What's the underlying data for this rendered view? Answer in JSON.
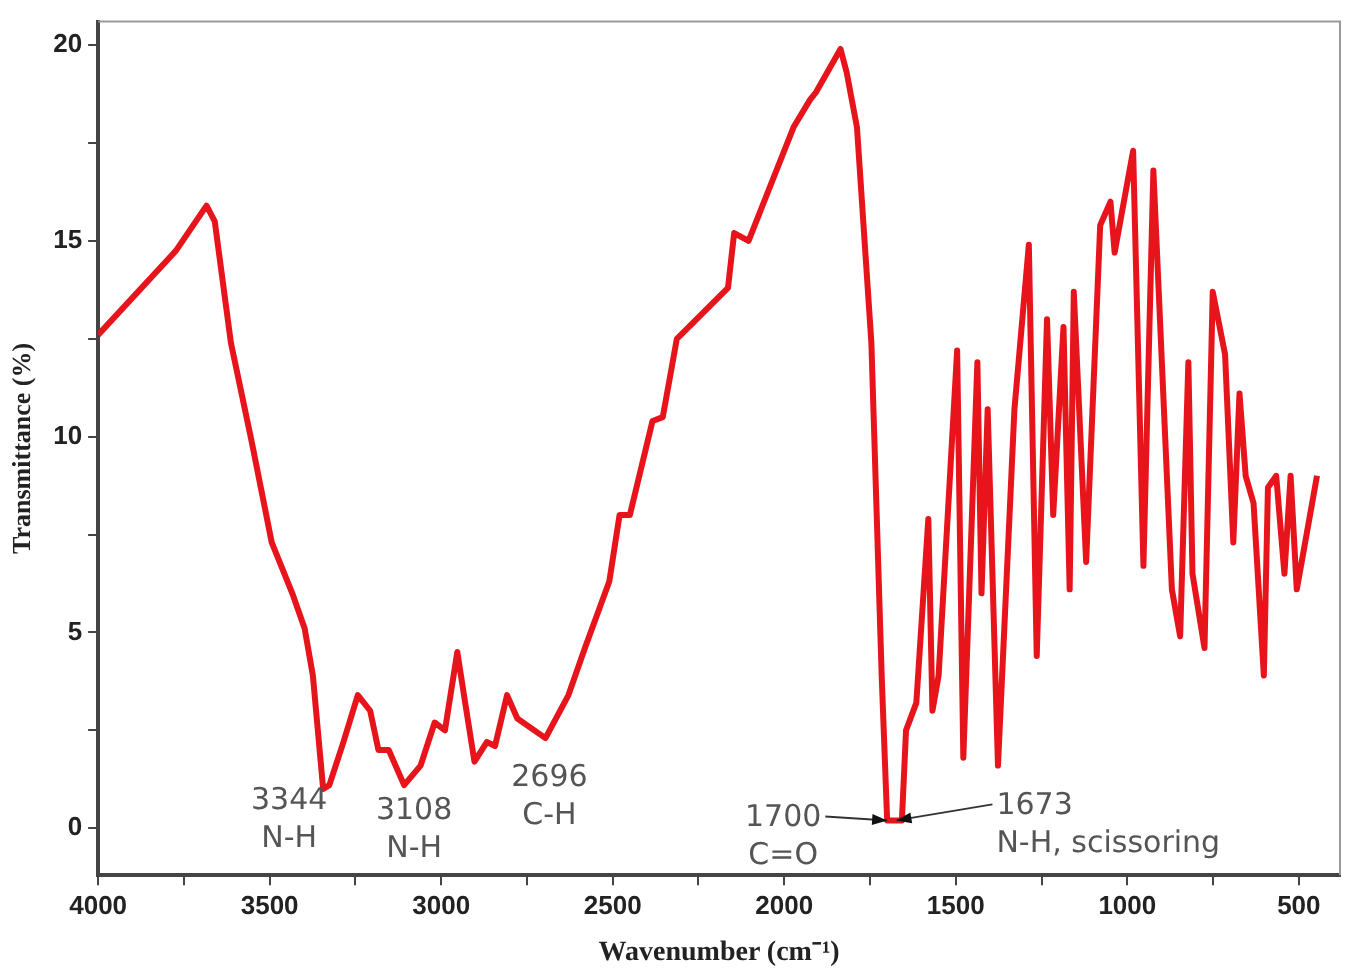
{
  "chart_data": {
    "type": "line",
    "xlabel": "Wavenumber (cm⁻¹)",
    "ylabel": "Transmittance (%)",
    "xlim": [
      4000,
      380
    ],
    "ylim": [
      -1.2,
      20.6
    ],
    "xticks": [
      4000,
      {
        "value": 3750,
        "label": null
      },
      3500,
      {
        "value": 3250,
        "label": null
      },
      3000,
      {
        "value": 2750,
        "label": null
      },
      2500,
      {
        "value": 2250,
        "label": null
      },
      2000,
      {
        "value": 1750,
        "label": null
      },
      1500,
      {
        "value": 1250,
        "label": null
      },
      1000,
      {
        "value": 750,
        "label": null
      },
      500
    ],
    "yticks": [
      0,
      {
        "value": 2.5,
        "label": null
      },
      5,
      {
        "value": 7.5,
        "label": null
      },
      10,
      {
        "value": 12.5,
        "label": null
      },
      15,
      {
        "value": 17.5,
        "label": null
      },
      20
    ],
    "grid": false,
    "legend": false,
    "marker": "none",
    "line_style": "solid",
    "series": [
      {
        "color": "#e8141c",
        "x": [
          4000,
          3773,
          3684,
          3660,
          3613,
          3553,
          3494,
          3434,
          3398,
          3374,
          3344,
          3326,
          3285,
          3243,
          3207,
          3183,
          3153,
          3108,
          3060,
          3019,
          2989,
          2953,
          2930,
          2903,
          2867,
          2843,
          2808,
          2778,
          2696,
          2629,
          2581,
          2510,
          2480,
          2450,
          2384,
          2354,
          2313,
          2164,
          2146,
          2104,
          1973,
          1925,
          1907,
          1836,
          1818,
          1788,
          1746,
          1716,
          1700,
          1673,
          1657,
          1645,
          1615,
          1580,
          1568,
          1550,
          1496,
          1478,
          1437,
          1425,
          1407,
          1377,
          1329,
          1287,
          1264,
          1234,
          1216,
          1186,
          1168,
          1156,
          1120,
          1079,
          1049,
          1037,
          983,
          953,
          924,
          870,
          846,
          822,
          810,
          775,
          751,
          715,
          691,
          673,
          655,
          632,
          602,
          590,
          566,
          542,
          524,
          506,
          447
        ],
        "values": [
          12.6,
          14.75,
          15.9,
          15.5,
          12.4,
          9.9,
          7.3,
          6.0,
          5.1,
          3.9,
          1.0,
          1.1,
          2.2,
          3.4,
          3.0,
          2.0,
          2.0,
          1.1,
          1.6,
          2.7,
          2.5,
          4.5,
          3.2,
          1.7,
          2.2,
          2.1,
          3.4,
          2.8,
          2.3,
          3.4,
          4.6,
          6.3,
          8.0,
          8.0,
          10.4,
          10.5,
          12.5,
          13.8,
          15.2,
          15.0,
          17.9,
          18.6,
          18.8,
          19.9,
          19.3,
          17.9,
          12.4,
          3.9,
          0.2,
          0.2,
          0.2,
          2.5,
          3.2,
          7.9,
          3.0,
          3.9,
          12.2,
          1.8,
          11.9,
          6.0,
          10.7,
          1.6,
          10.7,
          14.9,
          4.4,
          13.0,
          8.0,
          12.8,
          6.1,
          13.7,
          6.8,
          15.4,
          16.0,
          14.7,
          17.3,
          6.7,
          16.8,
          6.1,
          4.9,
          11.9,
          6.5,
          4.6,
          13.7,
          12.1,
          7.3,
          11.1,
          9.0,
          8.3,
          3.9,
          8.7,
          9.0,
          6.5,
          9.0,
          6.1,
          9.0
        ]
      }
    ],
    "annotations": [
      {
        "text": "3344\nN-H",
        "x": 3344,
        "y": 1.0
      },
      {
        "text": "3108\nN-H",
        "x": 3108,
        "y": 1.1
      },
      {
        "text": "2696\nC-H",
        "x": 2696,
        "y": 2.3
      },
      {
        "text": "1700\nC=O",
        "x": 1700,
        "y": 0.2
      },
      {
        "text": "1673\nN-H, scissoring",
        "x": 1673,
        "y": 0.2
      }
    ]
  }
}
